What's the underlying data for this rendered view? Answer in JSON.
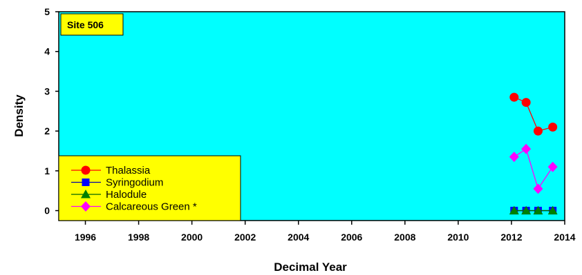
{
  "chart_data": {
    "type": "line",
    "site_label": "Site 506",
    "xlabel": "Decimal Year",
    "ylabel": "Density",
    "xlim": [
      1995,
      2014
    ],
    "ylim": [
      -0.25,
      5
    ],
    "x_ticks": [
      1996,
      1998,
      2000,
      2002,
      2004,
      2006,
      2008,
      2010,
      2012,
      2014
    ],
    "y_ticks": [
      0,
      1,
      2,
      3,
      4,
      5
    ],
    "plot_background": "#00ffff",
    "legend_background": "#ffff00",
    "legend_position": "bottom-left",
    "grid": false,
    "x": [
      2012.1,
      2012.55,
      2013.0,
      2013.55
    ],
    "series": [
      {
        "name": "Thalassia",
        "values": [
          2.85,
          2.72,
          2.0,
          2.1
        ],
        "color": "#ff0000",
        "line_color": "#ff0000",
        "marker": "circle"
      },
      {
        "name": "Syringodium",
        "values": [
          0,
          0,
          0,
          0
        ],
        "color": "#0000ff",
        "line_color": "#0000aa",
        "marker": "square"
      },
      {
        "name": "Halodule",
        "values": [
          0,
          0,
          0,
          0
        ],
        "color": "#008000",
        "line_color": "#006400",
        "marker": "triangle"
      },
      {
        "name": "Calcareous Green *",
        "values": [
          1.35,
          1.55,
          0.55,
          1.1
        ],
        "color": "#ff00ff",
        "line_color": "#ff00ff",
        "marker": "diamond"
      }
    ]
  }
}
